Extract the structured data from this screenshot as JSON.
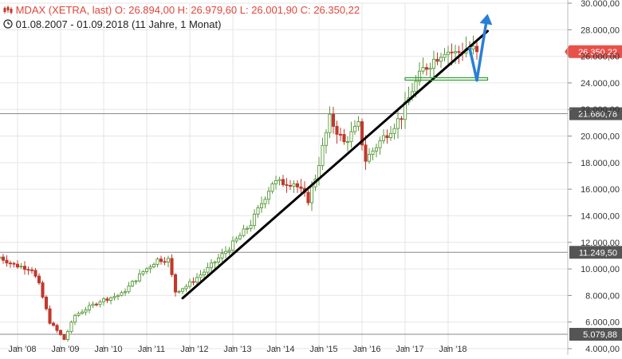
{
  "header": {
    "instrument": "MDAX (XETRA, last)",
    "open": "O: 26.894,00",
    "high": "H: 26.979,60",
    "low": "L: 26.001,90",
    "close": "C: 26.350,22",
    "range": "01.08.2007 - 01.09.2018",
    "duration": "(11 Jahre, 1 Monat)"
  },
  "colors": {
    "up": "#5a9a3c",
    "down": "#c0392b",
    "title": "#e0463c",
    "price_badge": "#e8504a",
    "level_badge": "#555555",
    "trendline": "#000000",
    "support": "#2e9e2e",
    "arrow": "#2a7fd4",
    "grid": "#e6e6e6"
  },
  "chart_data": {
    "type": "candlestick",
    "x_range": [
      "2007-08",
      "2018-09"
    ],
    "ylim": [
      4000,
      30000
    ],
    "y_ticks": [
      "4.000,00",
      "6.000,00",
      "8.000,00",
      "10.000,00",
      "12.000,00",
      "14.000,00",
      "16.000,00",
      "18.000,00",
      "20.000,00",
      "22.000,00",
      "24.000,00",
      "26.000,00",
      "28.000,00",
      "30.000,00"
    ],
    "x_ticks": [
      {
        "date": "2008-01",
        "label": "Jan '08"
      },
      {
        "date": "2009-01",
        "label": "Jan '09"
      },
      {
        "date": "2010-01",
        "label": "Jan '10"
      },
      {
        "date": "2011-01",
        "label": "Jan '11"
      },
      {
        "date": "2012-01",
        "label": "Jan '12"
      },
      {
        "date": "2013-01",
        "label": "Jan '13"
      },
      {
        "date": "2014-01",
        "label": "Jan '14"
      },
      {
        "date": "2015-01",
        "label": "Jan '15"
      },
      {
        "date": "2016-01",
        "label": "Jan '16"
      },
      {
        "date": "2017-01",
        "label": "Jan '17"
      },
      {
        "date": "2018-01",
        "label": "Jan '18"
      }
    ],
    "grid": true,
    "horizontal_levels": [
      {
        "value": 21680.78,
        "label": "21.680,78"
      },
      {
        "value": 11249.5,
        "label": "11.249,50"
      },
      {
        "value": 5079.88,
        "label": "5.079,88"
      }
    ],
    "last_price": {
      "value": 26350.22,
      "label": "26.350,22"
    },
    "annotations": {
      "trendline": [
        [
          "2011-11",
          7800
        ],
        [
          "2018-12",
          27900
        ]
      ],
      "support_line": {
        "from": "2017-01",
        "to": "2018-12",
        "value": 24300
      },
      "arrow_down": [
        [
          "2018-07",
          26600
        ],
        [
          "2018-09",
          24200
        ]
      ],
      "arrow_up": [
        [
          "2018-09",
          24200
        ],
        [
          "2018-12",
          29200
        ]
      ]
    },
    "series": [
      {
        "type": "candlestick",
        "anchors": [
          [
            "2007-08",
            10900
          ],
          [
            "2007-12",
            10300
          ],
          [
            "2008-05",
            10000
          ],
          [
            "2008-07",
            8800
          ],
          [
            "2008-10",
            6000
          ],
          [
            "2009-02",
            4700
          ],
          [
            "2009-05",
            6500
          ],
          [
            "2009-12",
            7600
          ],
          [
            "2010-06",
            8100
          ],
          [
            "2010-12",
            9800
          ],
          [
            "2011-04",
            10700
          ],
          [
            "2011-07",
            10700
          ],
          [
            "2011-09",
            8300
          ],
          [
            "2011-12",
            8700
          ],
          [
            "2012-06",
            10000
          ],
          [
            "2012-12",
            11600
          ],
          [
            "2013-06",
            13400
          ],
          [
            "2013-12",
            16500
          ],
          [
            "2014-06",
            16500
          ],
          [
            "2014-10",
            15200
          ],
          [
            "2014-12",
            16900
          ],
          [
            "2015-04",
            21300
          ],
          [
            "2015-08",
            19500
          ],
          [
            "2015-12",
            20800
          ],
          [
            "2016-02",
            18200
          ],
          [
            "2016-06",
            19600
          ],
          [
            "2016-12",
            21500
          ],
          [
            "2017-03",
            23500
          ],
          [
            "2017-06",
            25000
          ],
          [
            "2017-12",
            26500
          ],
          [
            "2018-03",
            26200
          ],
          [
            "2018-06",
            26600
          ],
          [
            "2018-08",
            26500
          ],
          [
            "2018-09",
            26350
          ]
        ]
      }
    ]
  }
}
